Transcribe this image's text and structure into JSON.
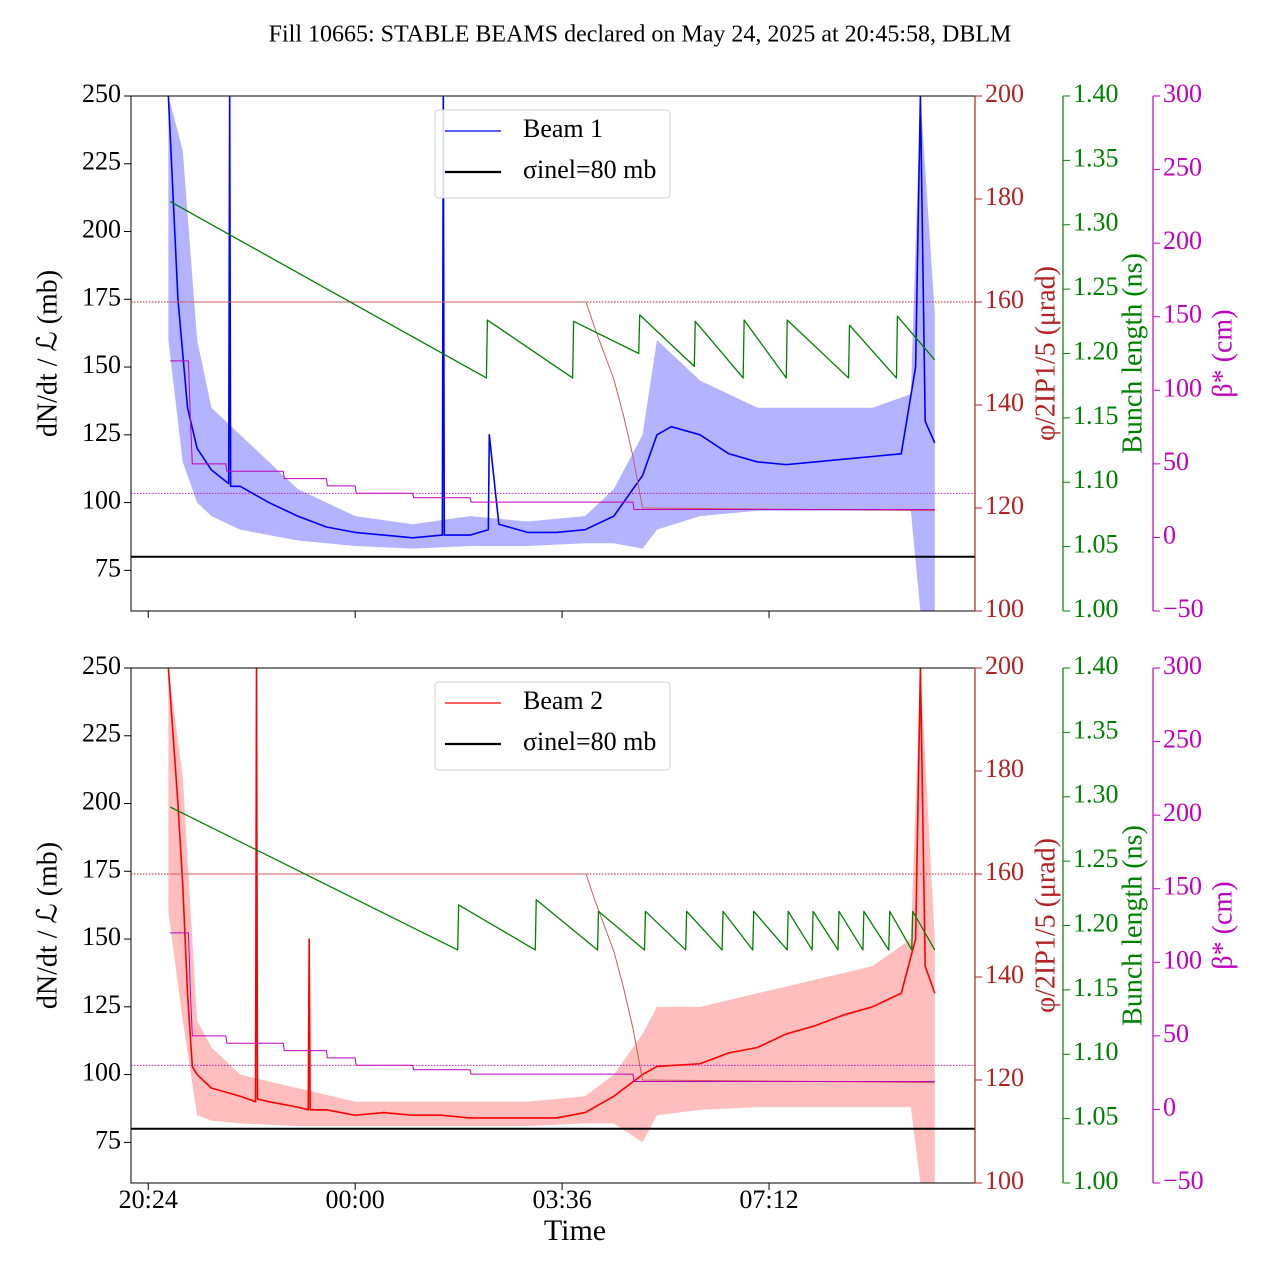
{
  "title": "Fill 10665: STABLE BEAMS declared on May 24, 2025 at 20:45:58, DBLM",
  "chart_data": [
    {
      "type": "line",
      "legend_loc": "upper center",
      "ylabel": "dN/dt / ℒ (mb)",
      "y2label": "φ/2IP1/5 (μrad)",
      "y3label": "Bunch length (ns)",
      "y4label": "β* (cm)",
      "xlim": [
        "20:06",
        "10:47"
      ],
      "xticks": [
        "20:24",
        "00:00",
        "03:36",
        "07:12"
      ],
      "xtick_labels": false,
      "ylim": [
        60,
        250
      ],
      "yticks": [
        75,
        100,
        125,
        150,
        175,
        200,
        225,
        250
      ],
      "y2lim": [
        100,
        200
      ],
      "y2ticks": [
        100,
        120,
        140,
        160,
        180,
        200
      ],
      "y3lim": [
        1.0,
        1.4
      ],
      "y3ticks": [
        {
          "value": 1.0,
          "label": "1.00"
        },
        {
          "value": 1.05,
          "label": "1.05"
        },
        {
          "value": 1.1,
          "label": "1.10"
        },
        {
          "value": 1.15,
          "label": "1.15"
        },
        {
          "value": 1.2,
          "label": "1.20"
        },
        {
          "value": 1.25,
          "label": "1.25"
        },
        {
          "value": 1.3,
          "label": "1.30"
        },
        {
          "value": 1.35,
          "label": "1.35"
        },
        {
          "value": 1.4,
          "label": "1.40"
        }
      ],
      "y4lim": [
        -50,
        300
      ],
      "y4ticks": [
        {
          "value": -50,
          "label": "−50"
        },
        0,
        50,
        100,
        150,
        200,
        250,
        300
      ],
      "band": {
        "color": "#9a9aff",
        "x": [
          "20:45",
          "21:00",
          "21:15",
          "21:30",
          "22:00",
          "23:00",
          "00:00",
          "01:00",
          "02:00",
          "03:00",
          "04:00",
          "04:30",
          "05:00",
          "05:15",
          "06:00",
          "07:00",
          "08:00",
          "09:00",
          "09:40",
          "09:50",
          "10:05"
        ],
        "upper": [
          250,
          230,
          160,
          135,
          125,
          105,
          95,
          92,
          95,
          93,
          95,
          105,
          125,
          160,
          145,
          135,
          135,
          135,
          140,
          250,
          170
        ],
        "lower": [
          160,
          115,
          100,
          95,
          90,
          86,
          84,
          83,
          84,
          84,
          85,
          85,
          83,
          90,
          95,
          97,
          97,
          97,
          97,
          60,
          60
        ]
      },
      "series": [
        {
          "name": "Beam 1",
          "color": "#0000ff",
          "axis": "y",
          "width": 1.6,
          "x": [
            "20:45",
            "20:55",
            "21:05",
            "21:15",
            "21:30",
            "21:48",
            "21:49",
            "21:50",
            "22:00",
            "22:30",
            "23:00",
            "23:30",
            "00:00",
            "00:30",
            "01:00",
            "01:31",
            "01:32",
            "01:33",
            "02:00",
            "02:19",
            "02:20",
            "02:30",
            "03:00",
            "03:30",
            "04:00",
            "04:30",
            "05:00",
            "05:15",
            "05:30",
            "06:00",
            "06:30",
            "07:00",
            "07:30",
            "08:00",
            "08:30",
            "09:00",
            "09:30",
            "09:45",
            "09:50",
            "09:55",
            "10:05"
          ],
          "values": [
            250,
            175,
            135,
            120,
            112,
            107,
            250,
            106,
            106,
            100,
            95,
            91,
            89,
            88,
            87,
            88,
            250,
            88,
            88,
            90,
            125,
            92,
            89,
            89,
            90,
            95,
            110,
            125,
            128,
            125,
            118,
            115,
            114,
            115,
            116,
            117,
            118,
            150,
            250,
            130,
            122
          ]
        },
        {
          "color": "#cd5c5c",
          "axis": "y2",
          "width": 1,
          "x": [
            "20:47",
            "04:01",
            "04:10",
            "04:20",
            "04:30",
            "04:40",
            "04:50",
            "05:00",
            "10:05"
          ],
          "values": [
            160,
            160,
            155,
            150,
            145,
            138,
            130,
            120,
            119.5
          ]
        },
        {
          "color": "#008000",
          "axis": "y3",
          "width": 1.3,
          "x": [
            "20:47",
            "02:17",
            "02:18",
            "03:47",
            "03:48",
            "04:56",
            "04:57",
            "05:54",
            "05:55",
            "06:45",
            "06:46",
            "07:30",
            "07:31",
            "08:35",
            "08:36",
            "09:25",
            "09:26",
            "10:05"
          ],
          "values": [
            1.318,
            1.181,
            1.226,
            1.181,
            1.225,
            1.2,
            1.23,
            1.19,
            1.225,
            1.181,
            1.226,
            1.181,
            1.226,
            1.181,
            1.222,
            1.181,
            1.229,
            1.195
          ]
        },
        {
          "color": "#bf00bf",
          "axis": "y4",
          "width": 1,
          "x": [
            "20:47",
            "21:06",
            "21:08",
            "21:10",
            "21:45",
            "21:46",
            "22:45",
            "22:46",
            "23:30",
            "23:31",
            "00:00",
            "00:01",
            "01:00",
            "01:01",
            "02:00",
            "02:01",
            "04:50",
            "04:51",
            "10:05"
          ],
          "values": [
            120,
            120,
            80,
            50,
            50,
            45,
            45,
            40,
            40,
            35,
            35,
            30,
            30,
            27,
            27,
            24,
            24,
            19,
            19
          ]
        }
      ],
      "hlines": [
        {
          "name": "σinel=80 mb",
          "color": "#000000",
          "axis": "y",
          "value": 80,
          "style": "solid"
        },
        {
          "color": "#b22222",
          "axis": "y2",
          "value": 160,
          "style": "dotted"
        },
        {
          "color": "#bf00bf",
          "axis": "y4",
          "value": 30,
          "style": "dotted"
        }
      ]
    },
    {
      "type": "line",
      "legend_loc": "upper center",
      "ylabel": "dN/dt / ℒ (mb)",
      "y2label": "φ/2IP1/5 (μrad)",
      "y3label": "Bunch length (ns)",
      "y4label": "β* (cm)",
      "xlabel": "Time",
      "xlim": [
        "20:06",
        "10:47"
      ],
      "xticks": [
        "20:24",
        "00:00",
        "03:36",
        "07:12"
      ],
      "xtick_labels": true,
      "ylim": [
        60,
        250
      ],
      "yticks": [
        75,
        100,
        125,
        150,
        175,
        200,
        225,
        250
      ],
      "y2lim": [
        100,
        200
      ],
      "y2ticks": [
        100,
        120,
        140,
        160,
        180,
        200
      ],
      "y3lim": [
        1.0,
        1.4
      ],
      "y3ticks": [
        {
          "value": 1.0,
          "label": "1.00"
        },
        {
          "value": 1.05,
          "label": "1.05"
        },
        {
          "value": 1.1,
          "label": "1.10"
        },
        {
          "value": 1.15,
          "label": "1.15"
        },
        {
          "value": 1.2,
          "label": "1.20"
        },
        {
          "value": 1.25,
          "label": "1.25"
        },
        {
          "value": 1.3,
          "label": "1.30"
        },
        {
          "value": 1.35,
          "label": "1.35"
        },
        {
          "value": 1.4,
          "label": "1.40"
        }
      ],
      "y4lim": [
        -50,
        300
      ],
      "y4ticks": [
        {
          "value": -50,
          "label": "−50"
        },
        0,
        50,
        100,
        150,
        200,
        250,
        300
      ],
      "band": {
        "color": "#ffa8a8",
        "x": [
          "20:45",
          "21:00",
          "21:15",
          "21:30",
          "22:00",
          "23:00",
          "00:00",
          "01:00",
          "02:00",
          "03:00",
          "04:00",
          "04:30",
          "05:00",
          "05:15",
          "06:00",
          "07:00",
          "08:00",
          "09:00",
          "09:40",
          "09:50",
          "10:05"
        ],
        "upper": [
          250,
          210,
          120,
          110,
          100,
          95,
          90,
          90,
          90,
          90,
          92,
          100,
          115,
          125,
          125,
          130,
          135,
          140,
          150,
          250,
          150
        ],
        "lower": [
          160,
          120,
          85,
          83,
          82,
          81,
          81,
          81,
          81,
          81,
          82,
          82,
          75,
          85,
          87,
          88,
          88,
          88,
          88,
          60,
          60
        ]
      },
      "series": [
        {
          "name": "Beam 2",
          "color": "#ff0000",
          "axis": "y",
          "width": 1.6,
          "x": [
            "20:45",
            "20:55",
            "21:00",
            "21:05",
            "21:10",
            "21:15",
            "21:30",
            "22:00",
            "22:16",
            "22:17",
            "22:18",
            "22:30",
            "23:00",
            "23:11",
            "23:12",
            "23:13",
            "23:30",
            "00:00",
            "00:30",
            "01:00",
            "01:30",
            "02:00",
            "02:30",
            "03:00",
            "03:30",
            "04:00",
            "04:30",
            "05:00",
            "05:15",
            "06:00",
            "06:30",
            "07:00",
            "07:30",
            "08:00",
            "08:30",
            "09:00",
            "09:30",
            "09:45",
            "09:50",
            "09:55",
            "10:05"
          ],
          "values": [
            250,
            200,
            170,
            130,
            103,
            100,
            95,
            92,
            90,
            250,
            91,
            90,
            88,
            87,
            150,
            87,
            87,
            85,
            86,
            85,
            85,
            84,
            84,
            84,
            84,
            86,
            92,
            100,
            103,
            104,
            108,
            110,
            115,
            118,
            122,
            125,
            130,
            150,
            250,
            140,
            130
          ]
        },
        {
          "color": "#cd5c5c",
          "axis": "y2",
          "width": 1,
          "x": [
            "20:47",
            "04:01",
            "04:10",
            "04:20",
            "04:30",
            "04:40",
            "04:50",
            "05:00",
            "10:05"
          ],
          "values": [
            160,
            160,
            155,
            150,
            145,
            138,
            130,
            120,
            119.5
          ]
        },
        {
          "color": "#008000",
          "axis": "y3",
          "width": 1.3,
          "x": [
            "20:47",
            "01:47",
            "01:48",
            "03:08",
            "03:09",
            "04:13",
            "04:14",
            "05:02",
            "05:03",
            "05:45",
            "05:46",
            "06:23",
            "06:24",
            "06:55",
            "06:56",
            "07:31",
            "07:32",
            "07:57",
            "07:58",
            "08:24",
            "08:25",
            "08:50",
            "08:51",
            "09:17",
            "09:18",
            "09:41",
            "09:42",
            "10:05"
          ],
          "values": [
            1.292,
            1.181,
            1.216,
            1.181,
            1.22,
            1.181,
            1.211,
            1.181,
            1.211,
            1.181,
            1.211,
            1.181,
            1.211,
            1.181,
            1.211,
            1.181,
            1.211,
            1.181,
            1.211,
            1.181,
            1.211,
            1.181,
            1.211,
            1.181,
            1.211,
            1.181,
            1.211,
            1.181
          ]
        },
        {
          "color": "#bf00bf",
          "axis": "y4",
          "width": 1,
          "x": [
            "20:47",
            "21:06",
            "21:08",
            "21:10",
            "21:45",
            "21:46",
            "22:45",
            "22:46",
            "23:30",
            "23:31",
            "00:00",
            "00:01",
            "01:00",
            "01:01",
            "02:00",
            "02:01",
            "04:50",
            "04:51",
            "10:05"
          ],
          "values": [
            120,
            120,
            80,
            50,
            50,
            45,
            45,
            40,
            40,
            35,
            35,
            30,
            30,
            27,
            27,
            24,
            24,
            19,
            19
          ]
        }
      ],
      "hlines": [
        {
          "name": "σinel=80 mb",
          "color": "#000000",
          "axis": "y",
          "value": 80,
          "style": "solid"
        },
        {
          "color": "#b22222",
          "axis": "y2",
          "value": 160,
          "style": "dotted"
        },
        {
          "color": "#bf00bf",
          "axis": "y4",
          "value": 30,
          "style": "dotted"
        }
      ]
    }
  ]
}
